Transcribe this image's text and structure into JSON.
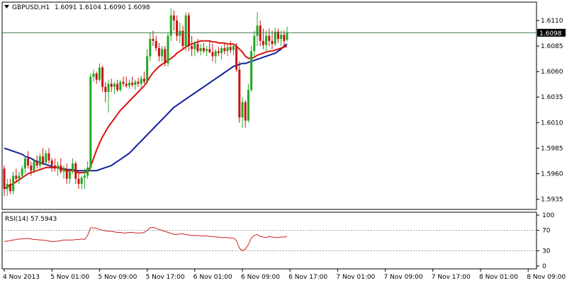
{
  "symbol_label": "GBPUSD,H1",
  "ohlc_label": "1.6091 1.6104 1.6090 1.6098",
  "current_price_label": "1.6098",
  "rsi_label": "RSI(14) 57.5943",
  "colors": {
    "bull": "#22a822",
    "bear": "#cc1111",
    "ma_fast": "#dd1111",
    "ma_slow": "#12209a",
    "rsi": "#cc2222",
    "price_line": "#3a7a4a",
    "axis": "#000000",
    "level": "#a0a0a0"
  },
  "chart_data": [
    {
      "type": "candlestick",
      "ylim": [
        1.5925,
        1.6128
      ],
      "y_ticks": [
        "1.6110",
        "1.6085",
        "1.6060",
        "1.6035",
        "1.6010",
        "1.5985",
        "1.5960",
        "1.5935"
      ],
      "x_ticks": [
        "4 Nov 2013",
        "5 Nov 01:00",
        "5 Nov 09:00",
        "5 Nov 17:00",
        "6 Nov 01:00",
        "6 Nov 09:00",
        "6 Nov 17:00",
        "7 Nov 01:00",
        "7 Nov 09:00",
        "7 Nov 17:00",
        "8 Nov 01:00",
        "8 Nov 09:00"
      ],
      "x_tick_index": [
        0,
        16,
        32,
        48,
        64,
        80,
        96,
        112,
        128,
        144,
        160,
        176
      ],
      "current_price": 1.6098,
      "candles": [
        [
          1.5965,
          1.5968,
          1.5938,
          1.5945
        ],
        [
          1.5945,
          1.5955,
          1.5938,
          1.595
        ],
        [
          1.595,
          1.5955,
          1.594,
          1.5943
        ],
        [
          1.5943,
          1.5962,
          1.594,
          1.5958
        ],
        [
          1.5958,
          1.5965,
          1.5952,
          1.5955
        ],
        [
          1.5955,
          1.5962,
          1.595,
          1.5958
        ],
        [
          1.5958,
          1.5968,
          1.5955,
          1.5965
        ],
        [
          1.5965,
          1.5978,
          1.596,
          1.5975
        ],
        [
          1.5975,
          1.5982,
          1.5965,
          1.5968
        ],
        [
          1.5968,
          1.5972,
          1.5958,
          1.5963
        ],
        [
          1.5963,
          1.5975,
          1.596,
          1.5972
        ],
        [
          1.5972,
          1.5978,
          1.5965,
          1.5968
        ],
        [
          1.5968,
          1.598,
          1.5965,
          1.5977
        ],
        [
          1.5977,
          1.5985,
          1.5968,
          1.5971
        ],
        [
          1.5971,
          1.5983,
          1.5968,
          1.598
        ],
        [
          1.598,
          1.5985,
          1.597,
          1.5973
        ],
        [
          1.5973,
          1.5975,
          1.5962,
          1.5968
        ],
        [
          1.5968,
          1.5975,
          1.5962,
          1.5965
        ],
        [
          1.5965,
          1.5972,
          1.5958,
          1.5968
        ],
        [
          1.5968,
          1.5975,
          1.596,
          1.5962
        ],
        [
          1.5962,
          1.5968,
          1.5955,
          1.5965
        ],
        [
          1.5965,
          1.597,
          1.595,
          1.5955
        ],
        [
          1.5955,
          1.5965,
          1.595,
          1.5962
        ],
        [
          1.5962,
          1.5975,
          1.596,
          1.597
        ],
        [
          1.597,
          1.5972,
          1.595,
          1.5955
        ],
        [
          1.5955,
          1.5962,
          1.5945,
          1.595
        ],
        [
          1.595,
          1.5958,
          1.5945,
          1.5956
        ],
        [
          1.5956,
          1.5965,
          1.5945,
          1.5958
        ],
        [
          1.5958,
          1.5972,
          1.5955,
          1.5966
        ],
        [
          1.5966,
          1.6058,
          1.5962,
          1.6055
        ],
        [
          1.6055,
          1.6062,
          1.605,
          1.6058
        ],
        [
          1.6058,
          1.606,
          1.6048,
          1.6052
        ],
        [
          1.6052,
          1.6068,
          1.605,
          1.6064
        ],
        [
          1.6064,
          1.6066,
          1.604,
          1.6045
        ],
        [
          1.6045,
          1.605,
          1.603,
          1.604
        ],
        [
          1.604,
          1.6052,
          1.602,
          1.6048
        ],
        [
          1.6048,
          1.6053,
          1.604,
          1.6045
        ],
        [
          1.6045,
          1.605,
          1.6038,
          1.6048
        ],
        [
          1.6048,
          1.6052,
          1.604,
          1.6042
        ],
        [
          1.6042,
          1.6052,
          1.604,
          1.605
        ],
        [
          1.605,
          1.6055,
          1.6045,
          1.6048
        ],
        [
          1.6048,
          1.6055,
          1.6044,
          1.6046
        ],
        [
          1.6046,
          1.6052,
          1.6043,
          1.6049
        ],
        [
          1.6049,
          1.6055,
          1.6045,
          1.6047
        ],
        [
          1.6047,
          1.6052,
          1.6042,
          1.605
        ],
        [
          1.605,
          1.6054,
          1.6045,
          1.6048
        ],
        [
          1.6048,
          1.6056,
          1.6044,
          1.6053
        ],
        [
          1.6053,
          1.606,
          1.6048,
          1.605
        ],
        [
          1.605,
          1.6082,
          1.6048,
          1.6075
        ],
        [
          1.6075,
          1.6098,
          1.607,
          1.6092
        ],
        [
          1.6092,
          1.61,
          1.6085,
          1.609
        ],
        [
          1.609,
          1.6095,
          1.608,
          1.6083
        ],
        [
          1.6083,
          1.6088,
          1.607,
          1.6075
        ],
        [
          1.6075,
          1.6085,
          1.607,
          1.6082
        ],
        [
          1.6082,
          1.6085,
          1.6065,
          1.6068
        ],
        [
          1.6068,
          1.6098,
          1.6065,
          1.6095
        ],
        [
          1.6095,
          1.6122,
          1.609,
          1.6115
        ],
        [
          1.6115,
          1.612,
          1.61,
          1.611
        ],
        [
          1.611,
          1.6115,
          1.609,
          1.6095
        ],
        [
          1.6095,
          1.6108,
          1.6088,
          1.61
        ],
        [
          1.61,
          1.6105,
          1.6082,
          1.6085
        ],
        [
          1.6085,
          1.6118,
          1.608,
          1.6115
        ],
        [
          1.6115,
          1.6118,
          1.608,
          1.6085
        ],
        [
          1.6085,
          1.6095,
          1.6075,
          1.6082
        ],
        [
          1.6082,
          1.609,
          1.6075,
          1.6087
        ],
        [
          1.6087,
          1.6092,
          1.6078,
          1.608
        ],
        [
          1.608,
          1.6087,
          1.6076,
          1.6083
        ],
        [
          1.6083,
          1.6088,
          1.6078,
          1.608
        ],
        [
          1.608,
          1.6085,
          1.6075,
          1.6082
        ],
        [
          1.6082,
          1.609,
          1.6078,
          1.6079
        ],
        [
          1.6079,
          1.6087,
          1.607,
          1.6075
        ],
        [
          1.6075,
          1.6082,
          1.6068,
          1.608
        ],
        [
          1.608,
          1.6084,
          1.6075,
          1.6078
        ],
        [
          1.6078,
          1.6085,
          1.6072,
          1.6083
        ],
        [
          1.6083,
          1.6088,
          1.6077,
          1.608
        ],
        [
          1.608,
          1.6086,
          1.6075,
          1.6084
        ],
        [
          1.6084,
          1.609,
          1.6078,
          1.6081
        ],
        [
          1.6081,
          1.6087,
          1.6076,
          1.6085
        ],
        [
          1.6085,
          1.6088,
          1.606,
          1.6062
        ],
        [
          1.6062,
          1.607,
          1.601,
          1.6015
        ],
        [
          1.6015,
          1.6035,
          1.6005,
          1.603
        ],
        [
          1.603,
          1.6032,
          1.6005,
          1.6012
        ],
        [
          1.6012,
          1.6048,
          1.601,
          1.6042
        ],
        [
          1.6042,
          1.6085,
          1.604,
          1.608
        ],
        [
          1.608,
          1.61,
          1.6075,
          1.6095
        ],
        [
          1.6095,
          1.6118,
          1.6085,
          1.6105
        ],
        [
          1.6105,
          1.611,
          1.6085,
          1.609
        ],
        [
          1.609,
          1.6102,
          1.6082,
          1.6086
        ],
        [
          1.6086,
          1.61,
          1.608,
          1.6095
        ],
        [
          1.6095,
          1.6102,
          1.6085,
          1.609
        ],
        [
          1.609,
          1.61,
          1.6082,
          1.6087
        ],
        [
          1.6087,
          1.6103,
          1.6085,
          1.6099
        ],
        [
          1.6099,
          1.6102,
          1.6088,
          1.6092
        ],
        [
          1.6092,
          1.61,
          1.6085,
          1.6096
        ],
        [
          1.6096,
          1.61,
          1.6085,
          1.609
        ],
        [
          1.6091,
          1.6104,
          1.609,
          1.6098
        ]
      ],
      "ma_fast": [
        1.5945,
        1.5947,
        1.5949,
        1.595,
        1.5952,
        1.5954,
        1.5956,
        1.5958,
        1.596,
        1.5961,
        1.5962,
        1.5963,
        1.5964,
        1.5965,
        1.5966,
        1.5966,
        1.5966,
        1.5966,
        1.5966,
        1.5965,
        1.5964,
        1.5963,
        1.5963,
        1.5963,
        1.5962,
        1.5961,
        1.5961,
        1.5961,
        1.5962,
        1.5967,
        1.5975,
        1.5983,
        1.599,
        1.5996,
        1.6001,
        1.6006,
        1.601,
        1.6014,
        1.6018,
        1.6022,
        1.6025,
        1.6028,
        1.6031,
        1.6034,
        1.6037,
        1.604,
        1.6043,
        1.6046,
        1.605,
        1.6055,
        1.6059,
        1.6062,
        1.6065,
        1.6067,
        1.6069,
        1.6071,
        1.6073,
        1.6075,
        1.6078,
        1.608,
        1.6082,
        1.6084,
        1.6086,
        1.6087,
        1.6088,
        1.6089,
        1.609,
        1.609,
        1.609,
        1.609,
        1.6089,
        1.6089,
        1.6088,
        1.6088,
        1.6088,
        1.6087,
        1.6087,
        1.6087,
        1.6085,
        1.6082,
        1.6079,
        1.6075,
        1.6073,
        1.6073,
        1.6074,
        1.6076,
        1.6077,
        1.6078,
        1.6079,
        1.608,
        1.608,
        1.6081,
        1.6082,
        1.6083,
        1.6084,
        1.6085
      ],
      "ma_slow": [
        1.5985,
        1.5984,
        1.5983,
        1.5982,
        1.5981,
        1.598,
        1.5979,
        1.5977,
        1.5976,
        1.5975,
        1.5973,
        1.5972,
        1.5971,
        1.597,
        1.5969,
        1.5968,
        1.5967,
        1.5966,
        1.5966,
        1.5965,
        1.5965,
        1.5964,
        1.5964,
        1.5964,
        1.5963,
        1.5963,
        1.5963,
        1.5963,
        1.5963,
        1.5963,
        1.5963,
        1.5963,
        1.5964,
        1.5965,
        1.5966,
        1.5967,
        1.5968,
        1.597,
        1.5972,
        1.5974,
        1.5976,
        1.5978,
        1.598,
        1.5983,
        1.5986,
        1.5989,
        1.5992,
        1.5995,
        1.5998,
        1.6001,
        1.6004,
        1.6007,
        1.601,
        1.6013,
        1.6016,
        1.6019,
        1.6022,
        1.6025,
        1.6027,
        1.6029,
        1.6031,
        1.6033,
        1.6035,
        1.6037,
        1.6039,
        1.6041,
        1.6043,
        1.6045,
        1.6047,
        1.6049,
        1.6051,
        1.6053,
        1.6055,
        1.6057,
        1.6059,
        1.6061,
        1.6063,
        1.6065,
        1.6066,
        1.6067,
        1.6068,
        1.6068,
        1.6069,
        1.607,
        1.6071,
        1.6072,
        1.6073,
        1.6074,
        1.6075,
        1.6076,
        1.6077,
        1.6078,
        1.608,
        1.6082,
        1.6085,
        1.6087
      ]
    },
    {
      "type": "line",
      "name": "RSI(14)",
      "ylim": [
        0,
        100
      ],
      "y_ticks": [
        "100",
        "70",
        "30",
        "0"
      ],
      "levels": [
        70,
        30
      ],
      "values": [
        48,
        49,
        50,
        51,
        52,
        53,
        53,
        54,
        54,
        53,
        52,
        52,
        51,
        51,
        50,
        49,
        48,
        48,
        49,
        50,
        51,
        51,
        51,
        51,
        52,
        52,
        53,
        52,
        60,
        75,
        75,
        74,
        72,
        70,
        69,
        68,
        68,
        67,
        66,
        66,
        65,
        65,
        66,
        66,
        65,
        65,
        65,
        66,
        70,
        75,
        76,
        74,
        72,
        70,
        68,
        66,
        64,
        62,
        62,
        63,
        63,
        62,
        61,
        60,
        60,
        60,
        59,
        59,
        59,
        58,
        58,
        57,
        57,
        56,
        56,
        56,
        55,
        55,
        50,
        35,
        30,
        33,
        42,
        55,
        60,
        62,
        58,
        57,
        56,
        58,
        57,
        56,
        56,
        57,
        57,
        58
      ]
    }
  ]
}
